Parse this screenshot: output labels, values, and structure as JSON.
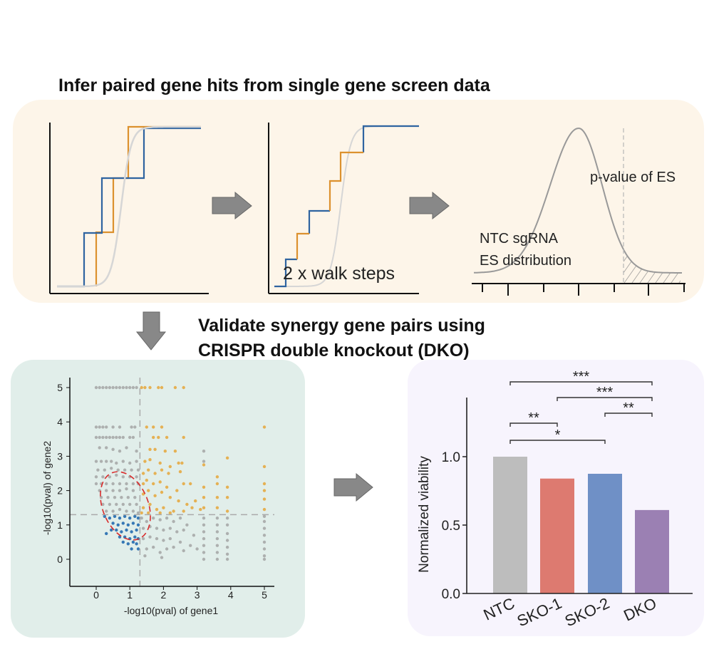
{
  "titles": {
    "top": "Infer paired gene hits from single gene screen data",
    "bottom_line1": "Validate synergy gene pairs using",
    "bottom_line2": "CRISPR double knockout (DKO)"
  },
  "top_panel": {
    "walk_label": "2 x walk steps",
    "pvalue_label": "p-value of ES",
    "ntc_line1": "NTC sgRNA",
    "ntc_line2": "ES distribution"
  },
  "colors": {
    "top_panel_bg": "#fdf5e9",
    "scatter_panel_bg": "#e1eeea",
    "bar_panel_bg": "#f7f4fd",
    "blue_step": "#2f64a0",
    "orange_step": "#dc912e",
    "arrow": "#888888",
    "threshold_line": "#aaaaaa",
    "ellipse": "#d92b2b"
  },
  "chart_data": [
    {
      "type": "scatter",
      "xlabel": "-log10(pval) of gene1",
      "ylabel": "-log10(pval) of gene2",
      "xlim": [
        -0.8,
        5.3
      ],
      "ylim": [
        -0.8,
        5.2
      ],
      "xticks": [
        "0",
        "1",
        "2",
        "3",
        "4",
        "5"
      ],
      "yticks": [
        "0",
        "1",
        "2",
        "3",
        "4",
        "5"
      ],
      "threshold": 1.3,
      "grid": false,
      "series": [
        {
          "color": "#a0a0a0",
          "points": [
            [
              0,
              5
            ],
            [
              0.1,
              5
            ],
            [
              0.2,
              5
            ],
            [
              0.3,
              5
            ],
            [
              0.4,
              5
            ],
            [
              0.5,
              5
            ],
            [
              0.6,
              5
            ],
            [
              0.7,
              5
            ],
            [
              0.8,
              5
            ],
            [
              0.9,
              5
            ],
            [
              1.0,
              5
            ],
            [
              1.1,
              5
            ],
            [
              1.2,
              5
            ],
            [
              0,
              3.85
            ],
            [
              0.1,
              3.85
            ],
            [
              0.2,
              3.85
            ],
            [
              0.3,
              3.85
            ],
            [
              0.5,
              3.85
            ],
            [
              0.7,
              3.85
            ],
            [
              1.05,
              3.85
            ],
            [
              1.15,
              3.85
            ],
            [
              0,
              3.55
            ],
            [
              0.1,
              3.55
            ],
            [
              0.2,
              3.55
            ],
            [
              0.3,
              3.55
            ],
            [
              0.4,
              3.55
            ],
            [
              0.5,
              3.55
            ],
            [
              0.6,
              3.55
            ],
            [
              0.7,
              3.55
            ],
            [
              0.8,
              3.55
            ],
            [
              1.0,
              3.55
            ],
            [
              1.1,
              3.55
            ],
            [
              0.1,
              3.25
            ],
            [
              0.3,
              3.25
            ],
            [
              0.5,
              3.2
            ],
            [
              0.9,
              3.25
            ],
            [
              0.7,
              3.15
            ],
            [
              1.2,
              3.15
            ],
            [
              0,
              2.85
            ],
            [
              0.15,
              2.85
            ],
            [
              0.3,
              2.85
            ],
            [
              0.45,
              2.85
            ],
            [
              0.6,
              2.8
            ],
            [
              0.8,
              2.85
            ],
            [
              1.0,
              2.8
            ],
            [
              1.2,
              2.85
            ],
            [
              0.05,
              2.6
            ],
            [
              0.25,
              2.6
            ],
            [
              0.45,
              2.65
            ],
            [
              0.65,
              2.6
            ],
            [
              0.85,
              2.6
            ],
            [
              1.05,
              2.6
            ],
            [
              1.25,
              2.6
            ],
            [
              0,
              2.4
            ],
            [
              0.2,
              2.4
            ],
            [
              0.4,
              2.4
            ],
            [
              0.6,
              2.45
            ],
            [
              0.8,
              2.4
            ],
            [
              1.0,
              2.4
            ],
            [
              1.2,
              2.4
            ],
            [
              0,
              2.2
            ],
            [
              0.15,
              2.2
            ],
            [
              0.3,
              2.2
            ],
            [
              0.5,
              2.2
            ],
            [
              0.7,
              2.2
            ],
            [
              0.9,
              2.2
            ],
            [
              1.1,
              2.2
            ],
            [
              1.25,
              2.2
            ],
            [
              0.1,
              2.0
            ],
            [
              0.3,
              2.0
            ],
            [
              0.5,
              2.0
            ],
            [
              0.7,
              2.0
            ],
            [
              0.9,
              2.05
            ],
            [
              1.1,
              2.0
            ],
            [
              0.15,
              1.8
            ],
            [
              0.35,
              1.8
            ],
            [
              0.55,
              1.8
            ],
            [
              0.75,
              1.8
            ],
            [
              0.95,
              1.8
            ],
            [
              1.15,
              1.8
            ],
            [
              0.2,
              1.6
            ],
            [
              0.4,
              1.6
            ],
            [
              0.6,
              1.6
            ],
            [
              0.8,
              1.6
            ],
            [
              1.0,
              1.6
            ],
            [
              1.2,
              1.6
            ],
            [
              0.3,
              1.4
            ],
            [
              0.5,
              1.4
            ],
            [
              0.7,
              1.45
            ],
            [
              0.9,
              1.4
            ],
            [
              1.1,
              1.4
            ],
            [
              1.25,
              1.35
            ],
            [
              1.35,
              1.2
            ],
            [
              1.5,
              1.1
            ],
            [
              1.7,
              1.2
            ],
            [
              1.9,
              1.15
            ],
            [
              2.1,
              1.2
            ],
            [
              2.3,
              1.1
            ],
            [
              2.5,
              1.2
            ],
            [
              2.7,
              1.0
            ],
            [
              1.4,
              0.9
            ],
            [
              1.6,
              0.95
            ],
            [
              1.8,
              0.9
            ],
            [
              2.0,
              0.85
            ],
            [
              2.2,
              0.9
            ],
            [
              2.4,
              0.8
            ],
            [
              2.6,
              0.85
            ],
            [
              2.9,
              0.7
            ],
            [
              1.4,
              0.6
            ],
            [
              1.6,
              0.65
            ],
            [
              1.8,
              0.6
            ],
            [
              2.0,
              0.55
            ],
            [
              2.2,
              0.6
            ],
            [
              2.5,
              0.5
            ],
            [
              2.8,
              0.4
            ],
            [
              3.0,
              0.3
            ],
            [
              1.5,
              0.3
            ],
            [
              1.7,
              0.35
            ],
            [
              1.9,
              0.2
            ],
            [
              2.1,
              0.3
            ],
            [
              2.3,
              0.35
            ],
            [
              2.6,
              0.25
            ],
            [
              1.45,
              0.1
            ],
            [
              1.95,
              0.05
            ],
            [
              3.2,
              0
            ],
            [
              3.2,
              0.2
            ],
            [
              3.2,
              0.4
            ],
            [
              3.2,
              0.6
            ],
            [
              3.2,
              0.8
            ],
            [
              3.2,
              1.0
            ],
            [
              3.2,
              1.2
            ],
            [
              3.2,
              2.85
            ],
            [
              3.2,
              3.15
            ],
            [
              3.6,
              0
            ],
            [
              3.6,
              0.2
            ],
            [
              3.6,
              0.4
            ],
            [
              3.6,
              0.6
            ],
            [
              3.6,
              0.8
            ],
            [
              3.6,
              1.0
            ],
            [
              3.6,
              1.2
            ],
            [
              3.9,
              0
            ],
            [
              3.9,
              0.15
            ],
            [
              3.9,
              0.35
            ],
            [
              3.9,
              0.55
            ],
            [
              3.9,
              0.75
            ],
            [
              3.9,
              1.0
            ],
            [
              3.9,
              1.2
            ],
            [
              5,
              0
            ],
            [
              5,
              0.1
            ],
            [
              5,
              0.3
            ],
            [
              5,
              0.5
            ],
            [
              5,
              0.7
            ],
            [
              5,
              0.9
            ],
            [
              5,
              1.1
            ],
            [
              5,
              1.25
            ]
          ]
        },
        {
          "color": "#e6a12e",
          "points": [
            [
              1.35,
              5
            ],
            [
              1.45,
              5
            ],
            [
              1.6,
              5
            ],
            [
              1.85,
              5
            ],
            [
              1.95,
              5
            ],
            [
              2.35,
              5
            ],
            [
              2.6,
              5
            ],
            [
              1.5,
              3.85
            ],
            [
              1.7,
              3.85
            ],
            [
              1.95,
              3.85
            ],
            [
              1.7,
              3.55
            ],
            [
              1.85,
              3.55
            ],
            [
              2.1,
              3.55
            ],
            [
              2.6,
              3.55
            ],
            [
              1.6,
              3.2
            ],
            [
              1.75,
              3.2
            ],
            [
              2.05,
              3.15
            ],
            [
              2.35,
              3.15
            ],
            [
              1.45,
              2.85
            ],
            [
              1.6,
              2.9
            ],
            [
              1.9,
              2.8
            ],
            [
              2.2,
              2.7
            ],
            [
              2.45,
              2.8
            ],
            [
              2.55,
              2.8
            ],
            [
              1.4,
              2.5
            ],
            [
              1.55,
              2.6
            ],
            [
              1.75,
              2.5
            ],
            [
              1.95,
              2.6
            ],
            [
              2.15,
              2.5
            ],
            [
              2.5,
              2.55
            ],
            [
              1.4,
              2.2
            ],
            [
              1.5,
              2.3
            ],
            [
              1.7,
              2.2
            ],
            [
              1.9,
              2.25
            ],
            [
              2.1,
              2.1
            ],
            [
              2.4,
              2.0
            ],
            [
              2.6,
              2.2
            ],
            [
              2.8,
              2.2
            ],
            [
              1.4,
              1.9
            ],
            [
              1.55,
              2.0
            ],
            [
              1.75,
              1.85
            ],
            [
              1.95,
              1.95
            ],
            [
              2.2,
              1.8
            ],
            [
              2.45,
              1.7
            ],
            [
              2.7,
              1.6
            ],
            [
              2.95,
              1.7
            ],
            [
              1.4,
              1.5
            ],
            [
              1.6,
              1.6
            ],
            [
              1.8,
              1.45
            ],
            [
              2.0,
              1.5
            ],
            [
              2.3,
              1.4
            ],
            [
              2.6,
              1.4
            ],
            [
              2.85,
              1.5
            ],
            [
              3.1,
              1.45
            ],
            [
              1.35,
              1.35
            ],
            [
              1.55,
              1.35
            ],
            [
              1.9,
              1.35
            ],
            [
              2.2,
              1.35
            ],
            [
              3.2,
              2.75
            ],
            [
              3.2,
              2.1
            ],
            [
              3.2,
              1.8
            ],
            [
              3.2,
              1.5
            ],
            [
              3.6,
              2.4
            ],
            [
              3.6,
              2.2
            ],
            [
              3.6,
              1.8
            ],
            [
              3.6,
              1.5
            ],
            [
              3.9,
              2.95
            ],
            [
              3.9,
              2.1
            ],
            [
              3.9,
              1.8
            ],
            [
              3.9,
              1.4
            ],
            [
              5,
              3.85
            ],
            [
              5,
              2.7
            ],
            [
              5,
              2.2
            ],
            [
              5,
              2.0
            ],
            [
              5,
              1.75
            ],
            [
              5,
              1.45
            ]
          ]
        },
        {
          "color": "#0b5aa8",
          "points": [
            [
              0.25,
              1.25
            ],
            [
              0.4,
              1.2
            ],
            [
              0.55,
              1.25
            ],
            [
              0.7,
              1.2
            ],
            [
              0.85,
              1.25
            ],
            [
              1.0,
              1.2
            ],
            [
              1.15,
              1.25
            ],
            [
              1.25,
              1.2
            ],
            [
              0.5,
              1.05
            ],
            [
              0.65,
              1.0
            ],
            [
              0.8,
              1.05
            ],
            [
              0.95,
              1.0
            ],
            [
              1.1,
              1.05
            ],
            [
              1.25,
              1.0
            ],
            [
              0.45,
              0.85
            ],
            [
              0.6,
              0.85
            ],
            [
              0.75,
              0.8
            ],
            [
              0.9,
              0.85
            ],
            [
              1.05,
              0.8
            ],
            [
              1.2,
              0.85
            ],
            [
              0.3,
              0.75
            ],
            [
              0.7,
              0.65
            ],
            [
              0.85,
              0.65
            ],
            [
              1.0,
              0.6
            ],
            [
              1.15,
              0.65
            ],
            [
              1.25,
              0.6
            ],
            [
              0.8,
              0.5
            ],
            [
              0.95,
              0.45
            ],
            [
              1.1,
              0.5
            ],
            [
              1.2,
              0.45
            ],
            [
              1.05,
              0.3
            ],
            [
              1.25,
              0.3
            ]
          ]
        }
      ]
    },
    {
      "type": "bar",
      "ylabel": "Normalized viability",
      "ylim": [
        0,
        1.4
      ],
      "yticks": [
        "0.0",
        "0.5",
        "1.0"
      ],
      "categories": [
        "NTC",
        "SKO-1",
        "SKO-2",
        "DKO"
      ],
      "values": [
        1.0,
        0.84,
        0.875,
        0.61
      ],
      "colors": [
        "#bdbdbd",
        "#dd7a70",
        "#6f90c6",
        "#9b80b3"
      ],
      "significance": [
        {
          "from": "NTC",
          "to": "DKO",
          "label": "***"
        },
        {
          "from": "SKO-1",
          "to": "DKO",
          "label": "***"
        },
        {
          "from": "SKO-2",
          "to": "DKO",
          "label": "**"
        },
        {
          "from": "NTC",
          "to": "SKO-1",
          "label": "**"
        },
        {
          "from": "NTC",
          "to": "SKO-2",
          "label": "*"
        }
      ]
    }
  ]
}
